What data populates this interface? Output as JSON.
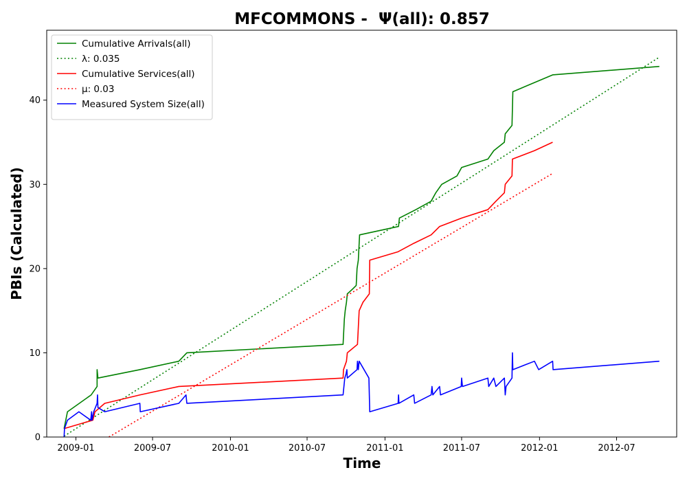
{
  "chart_data": {
    "type": "line",
    "title": "MFCOMMONS -  Ψ(all): 0.857",
    "xlabel": "Time",
    "ylabel": "PBIs (Calculated)",
    "xlim": [
      "2008-10-24",
      "2012-11-20"
    ],
    "ylim": [
      0,
      48.3
    ],
    "x_ticks": [
      "2009-01-01",
      "2009-07-01",
      "2010-01-01",
      "2010-07-01",
      "2011-01-01",
      "2011-07-01",
      "2012-01-01",
      "2012-07-01"
    ],
    "x_tick_labels": [
      "2009-01",
      "2009-07",
      "2010-01",
      "2010-07",
      "2011-01",
      "2011-07",
      "2012-01",
      "2012-07"
    ],
    "y_ticks": [
      0,
      10,
      20,
      30,
      40
    ],
    "y_tick_labels": [
      "0",
      "10",
      "20",
      "30",
      "40"
    ],
    "grid": false,
    "legend_position": "top-left",
    "series": [
      {
        "name": "Cumulative Arrivals(all)",
        "color": "#008000",
        "style": "solid",
        "points": [
          [
            "2008-12-04",
            1
          ],
          [
            "2008-12-12",
            3
          ],
          [
            "2009-02-06",
            5
          ],
          [
            "2009-02-20",
            6
          ],
          [
            "2009-02-20",
            8
          ],
          [
            "2009-02-22",
            7
          ],
          [
            "2009-06-01",
            8
          ],
          [
            "2009-09-01",
            9
          ],
          [
            "2009-09-20",
            10
          ],
          [
            "2010-09-24",
            11
          ],
          [
            "2010-09-25",
            12
          ],
          [
            "2010-09-27",
            14
          ],
          [
            "2010-09-29",
            15
          ],
          [
            "2010-10-02",
            16
          ],
          [
            "2010-10-04",
            17
          ],
          [
            "2010-10-15",
            17.5
          ],
          [
            "2010-10-25",
            18
          ],
          [
            "2010-10-27",
            20
          ],
          [
            "2010-10-30",
            21
          ],
          [
            "2010-11-01",
            23
          ],
          [
            "2010-11-02",
            24
          ],
          [
            "2011-02-02",
            25
          ],
          [
            "2011-02-04",
            26
          ],
          [
            "2011-03-15",
            27
          ],
          [
            "2011-04-20",
            28
          ],
          [
            "2011-05-01",
            29
          ],
          [
            "2011-05-15",
            30
          ],
          [
            "2011-06-20",
            31
          ],
          [
            "2011-07-01",
            32
          ],
          [
            "2011-09-01",
            33
          ],
          [
            "2011-09-15",
            34
          ],
          [
            "2011-10-10",
            35
          ],
          [
            "2011-10-12",
            36
          ],
          [
            "2011-10-28",
            37
          ],
          [
            "2011-10-30",
            41
          ],
          [
            "2012-02-01",
            43
          ],
          [
            "2012-10-10",
            44
          ]
        ]
      },
      {
        "name": "λ: 0.035",
        "color": "#008000",
        "style": "dotted",
        "points": [
          [
            "2008-12-04",
            0.1
          ],
          [
            "2012-10-10",
            45.1
          ]
        ]
      },
      {
        "name": "Cumulative Services(all)",
        "color": "#ff0000",
        "style": "solid",
        "points": [
          [
            "2008-12-04",
            1
          ],
          [
            "2009-02-10",
            2
          ],
          [
            "2009-02-15",
            3
          ],
          [
            "2009-03-10",
            4
          ],
          [
            "2009-06-01",
            5
          ],
          [
            "2009-09-01",
            6
          ],
          [
            "2010-09-24",
            7
          ],
          [
            "2010-09-25",
            8
          ],
          [
            "2010-10-02",
            9
          ],
          [
            "2010-10-04",
            10
          ],
          [
            "2010-10-28",
            11
          ],
          [
            "2010-10-30",
            13
          ],
          [
            "2010-11-01",
            15
          ],
          [
            "2010-11-10",
            16
          ],
          [
            "2010-11-25",
            17
          ],
          [
            "2010-11-26",
            21
          ],
          [
            "2011-02-01",
            22
          ],
          [
            "2011-03-10",
            23
          ],
          [
            "2011-04-20",
            24
          ],
          [
            "2011-05-10",
            25
          ],
          [
            "2011-07-01",
            26
          ],
          [
            "2011-09-01",
            27
          ],
          [
            "2011-09-20",
            28
          ],
          [
            "2011-10-10",
            29
          ],
          [
            "2011-10-12",
            30
          ],
          [
            "2011-10-28",
            31
          ],
          [
            "2011-10-29",
            33
          ],
          [
            "2011-12-20",
            34
          ],
          [
            "2012-02-01",
            35
          ]
        ]
      },
      {
        "name": "μ: 0.03",
        "color": "#ff0000",
        "style": "dotted",
        "points": [
          [
            "2009-03-20",
            0
          ],
          [
            "2012-02-01",
            31.3
          ]
        ]
      },
      {
        "name": "Measured System Size(all)",
        "color": "#0000ff",
        "style": "solid",
        "points": [
          [
            "2008-12-04",
            0
          ],
          [
            "2008-12-05",
            1
          ],
          [
            "2008-12-12",
            2
          ],
          [
            "2009-01-08",
            3
          ],
          [
            "2009-02-05",
            2
          ],
          [
            "2009-02-07",
            3
          ],
          [
            "2009-02-08",
            2
          ],
          [
            "2009-02-12",
            3
          ],
          [
            "2009-02-20",
            4
          ],
          [
            "2009-02-21",
            5
          ],
          [
            "2009-02-22",
            3.5
          ],
          [
            "2009-03-10",
            3
          ],
          [
            "2009-06-01",
            4
          ],
          [
            "2009-06-02",
            3
          ],
          [
            "2009-09-01",
            4
          ],
          [
            "2009-09-18",
            5
          ],
          [
            "2009-09-20",
            4
          ],
          [
            "2010-09-24",
            5
          ],
          [
            "2010-09-28",
            7
          ],
          [
            "2010-10-01",
            7.5
          ],
          [
            "2010-10-03",
            8
          ],
          [
            "2010-10-04",
            7
          ],
          [
            "2010-10-27",
            8
          ],
          [
            "2010-10-28",
            9
          ],
          [
            "2010-10-30",
            8
          ],
          [
            "2010-11-01",
            9
          ],
          [
            "2010-11-24",
            7
          ],
          [
            "2010-11-26",
            3
          ],
          [
            "2011-02-01",
            4
          ],
          [
            "2011-02-02",
            5
          ],
          [
            "2011-02-03",
            4
          ],
          [
            "2011-03-10",
            5
          ],
          [
            "2011-03-12",
            4
          ],
          [
            "2011-04-20",
            5
          ],
          [
            "2011-04-22",
            6
          ],
          [
            "2011-04-24",
            5
          ],
          [
            "2011-05-10",
            6
          ],
          [
            "2011-05-12",
            5
          ],
          [
            "2011-06-30",
            6
          ],
          [
            "2011-07-01",
            7
          ],
          [
            "2011-07-03",
            6
          ],
          [
            "2011-09-01",
            7
          ],
          [
            "2011-09-03",
            6
          ],
          [
            "2011-09-15",
            7
          ],
          [
            "2011-09-20",
            6
          ],
          [
            "2011-10-10",
            7
          ],
          [
            "2011-10-12",
            5
          ],
          [
            "2011-10-14",
            6
          ],
          [
            "2011-10-28",
            7
          ],
          [
            "2011-10-29",
            10
          ],
          [
            "2011-10-30",
            8
          ],
          [
            "2011-12-20",
            9
          ],
          [
            "2011-12-30",
            8
          ],
          [
            "2012-02-01",
            9
          ],
          [
            "2012-02-02",
            8
          ],
          [
            "2012-10-10",
            9
          ]
        ]
      }
    ]
  }
}
